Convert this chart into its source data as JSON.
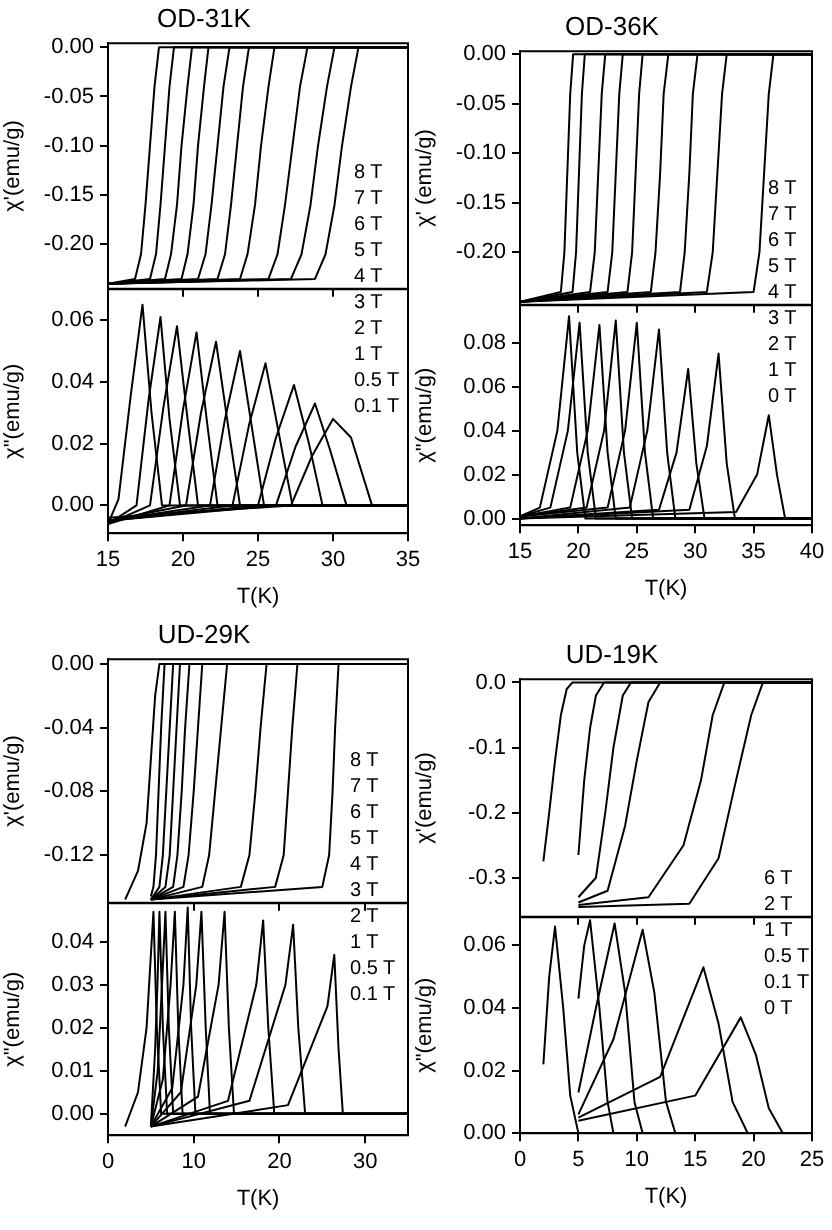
{
  "chart_data": [
    {
      "type": "line",
      "title": "OD-31K",
      "ylabel": "χ'(emu/g)",
      "xlim": [
        15,
        35
      ],
      "xticks": [
        15,
        20,
        25,
        30,
        35
      ],
      "ylim": [
        -0.245,
        0.004
      ],
      "yticks": [
        {
          "value": 0,
          "label": "0.00"
        },
        {
          "value": -0.05,
          "label": "-0.05"
        },
        {
          "value": -0.1,
          "label": "-0.10"
        },
        {
          "value": -0.15,
          "label": "-0.15"
        },
        {
          "value": -0.2,
          "label": "-0.20"
        }
      ],
      "tick_labels": "y",
      "marker": "none",
      "annotations": [
        "8 T",
        "7 T",
        "6 T",
        "5 T",
        "4 T",
        "3 T",
        "2 T",
        "1 T",
        "0.5 T",
        "0.1 T"
      ],
      "series": [
        {
          "color": "#000000",
          "x": [
            15,
            16.8,
            17.2,
            17.5,
            17.8,
            18.1,
            18.4,
            35
          ],
          "values": [
            -0.24,
            -0.235,
            -0.21,
            -0.16,
            -0.1,
            -0.04,
            0,
            0
          ]
        },
        {
          "color": "#000000",
          "x": [
            15,
            17.8,
            18.2,
            18.5,
            18.8,
            19.1,
            19.4,
            35
          ],
          "values": [
            -0.24,
            -0.235,
            -0.21,
            -0.16,
            -0.1,
            -0.04,
            0,
            0
          ]
        },
        {
          "color": "#000000",
          "x": [
            15,
            18.8,
            19.2,
            19.6,
            19.9,
            20.3,
            20.6,
            35
          ],
          "values": [
            -0.24,
            -0.235,
            -0.21,
            -0.16,
            -0.1,
            -0.04,
            0,
            0
          ]
        },
        {
          "color": "#000000",
          "x": [
            15,
            19.9,
            20.3,
            20.7,
            21.0,
            21.4,
            21.7,
            35
          ],
          "values": [
            -0.24,
            -0.235,
            -0.21,
            -0.16,
            -0.1,
            -0.04,
            0,
            0
          ]
        },
        {
          "color": "#000000",
          "x": [
            15,
            21.0,
            21.5,
            21.9,
            22.3,
            22.7,
            23.1,
            35
          ],
          "values": [
            -0.24,
            -0.235,
            -0.21,
            -0.16,
            -0.1,
            -0.04,
            0,
            0
          ]
        },
        {
          "color": "#000000",
          "x": [
            15,
            22.3,
            22.8,
            23.2,
            23.6,
            24.0,
            24.4,
            35
          ],
          "values": [
            -0.24,
            -0.235,
            -0.21,
            -0.16,
            -0.1,
            -0.04,
            0,
            0
          ]
        },
        {
          "color": "#000000",
          "x": [
            15,
            23.8,
            24.3,
            24.8,
            25.2,
            25.7,
            26.1,
            35
          ],
          "values": [
            -0.24,
            -0.235,
            -0.21,
            -0.16,
            -0.1,
            -0.04,
            0,
            0
          ]
        },
        {
          "color": "#000000",
          "x": [
            15,
            25.7,
            26.3,
            26.8,
            27.3,
            27.8,
            28.3,
            35
          ],
          "values": [
            -0.24,
            -0.235,
            -0.21,
            -0.16,
            -0.1,
            -0.04,
            0,
            0
          ]
        },
        {
          "color": "#000000",
          "x": [
            15,
            27.2,
            27.9,
            28.5,
            29.0,
            29.6,
            30.1,
            35
          ],
          "values": [
            -0.24,
            -0.235,
            -0.21,
            -0.16,
            -0.1,
            -0.04,
            0,
            0
          ]
        },
        {
          "color": "#000000",
          "x": [
            15,
            28.8,
            29.5,
            30.1,
            30.6,
            31.2,
            31.7,
            35
          ],
          "values": [
            -0.24,
            -0.235,
            -0.21,
            -0.16,
            -0.1,
            -0.04,
            0,
            0
          ]
        }
      ]
    },
    {
      "type": "line",
      "xlabel": "T(K)",
      "ylabel": "χ\"(emu/g)",
      "xlim": [
        15,
        35
      ],
      "xticks": [
        15,
        20,
        25,
        30,
        35
      ],
      "ylim": [
        -0.009,
        0.07
      ],
      "yticks": [
        {
          "value": 0,
          "label": "0.00"
        },
        {
          "value": 0.02,
          "label": "0.02"
        },
        {
          "value": 0.04,
          "label": "0.04"
        },
        {
          "value": 0.06,
          "label": "0.06"
        }
      ],
      "marker": "none",
      "series": [
        {
          "color": "#000000",
          "x": [
            15,
            15.7,
            16.5,
            17.3,
            17.9,
            18.6,
            35
          ],
          "values": [
            -0.006,
            0.002,
            0.035,
            0.065,
            0.03,
            0,
            0
          ]
        },
        {
          "color": "#000000",
          "x": [
            15,
            16.9,
            17.7,
            18.5,
            19.1,
            19.8,
            35
          ],
          "values": [
            -0.006,
            0,
            0.034,
            0.061,
            0.028,
            0,
            0
          ]
        },
        {
          "color": "#000000",
          "x": [
            15,
            17.8,
            18.7,
            19.6,
            20.3,
            21.0,
            35
          ],
          "values": [
            -0.006,
            0,
            0.032,
            0.058,
            0.028,
            0,
            0
          ]
        },
        {
          "color": "#000000",
          "x": [
            15,
            19.1,
            20.0,
            20.9,
            21.6,
            22.3,
            35
          ],
          "values": [
            -0.006,
            0,
            0.031,
            0.056,
            0.027,
            0,
            0
          ]
        },
        {
          "color": "#000000",
          "x": [
            15,
            20.2,
            21.2,
            22.2,
            23.0,
            23.8,
            35
          ],
          "values": [
            -0.005,
            0,
            0.03,
            0.053,
            0.026,
            0,
            0
          ]
        },
        {
          "color": "#000000",
          "x": [
            15,
            21.8,
            22.8,
            23.8,
            24.6,
            25.4,
            35
          ],
          "values": [
            -0.005,
            0,
            0.028,
            0.05,
            0.025,
            0,
            0
          ]
        },
        {
          "color": "#000000",
          "x": [
            15,
            23.3,
            24.4,
            25.5,
            26.4,
            27.3,
            35
          ],
          "values": [
            -0.005,
            0,
            0.026,
            0.046,
            0.023,
            0,
            0
          ]
        },
        {
          "color": "#000000",
          "x": [
            15,
            25.0,
            26.2,
            27.4,
            28.4,
            29.3,
            35
          ],
          "values": [
            -0.005,
            0,
            0.022,
            0.039,
            0.02,
            0,
            0
          ]
        },
        {
          "color": "#000000",
          "x": [
            15,
            26.2,
            27.5,
            28.8,
            29.8,
            30.9,
            35
          ],
          "values": [
            -0.005,
            0,
            0.019,
            0.033,
            0.018,
            0,
            0
          ]
        },
        {
          "color": "#000000",
          "x": [
            15,
            27.2,
            28.6,
            30.0,
            31.2,
            32.6,
            35
          ],
          "values": [
            -0.004,
            0,
            0.016,
            0.028,
            0.022,
            0,
            0
          ]
        }
      ]
    },
    {
      "type": "line",
      "title": "OD-36K",
      "ylabel": "χ' (emu/g)",
      "xlim": [
        15,
        40
      ],
      "xticks": [
        15,
        20,
        25,
        30,
        35,
        40
      ],
      "ylim": [
        -0.253,
        0.003
      ],
      "yticks": [
        {
          "value": 0,
          "label": "0.00"
        },
        {
          "value": -0.05,
          "label": "-0.05"
        },
        {
          "value": -0.1,
          "label": "-0.10"
        },
        {
          "value": -0.15,
          "label": "-0.15"
        },
        {
          "value": -0.2,
          "label": "-0.20"
        }
      ],
      "tick_labels": "y",
      "marker": "none",
      "annotations": [
        "8 T",
        "7 T",
        "6 T",
        "5 T",
        "4 T",
        "3 T",
        "2 T",
        "1 T",
        "0 T"
      ],
      "series": [
        {
          "color": "#000000",
          "x": [
            15,
            18.5,
            18.8,
            19.05,
            19.3,
            19.55,
            40
          ],
          "values": [
            -0.25,
            -0.24,
            -0.2,
            -0.12,
            -0.04,
            0,
            0
          ]
        },
        {
          "color": "#000000",
          "x": [
            15,
            19.5,
            19.8,
            20.05,
            20.3,
            20.55,
            40
          ],
          "values": [
            -0.25,
            -0.24,
            -0.2,
            -0.12,
            -0.04,
            0,
            0
          ]
        },
        {
          "color": "#000000",
          "x": [
            15,
            21.0,
            21.4,
            21.7,
            22.0,
            22.3,
            40
          ],
          "values": [
            -0.25,
            -0.24,
            -0.2,
            -0.12,
            -0.04,
            0,
            0
          ]
        },
        {
          "color": "#000000",
          "x": [
            15,
            22.5,
            22.9,
            23.2,
            23.5,
            23.8,
            40
          ],
          "values": [
            -0.25,
            -0.24,
            -0.2,
            -0.12,
            -0.04,
            0,
            0
          ]
        },
        {
          "color": "#000000",
          "x": [
            15,
            24.2,
            24.6,
            24.9,
            25.2,
            25.5,
            40
          ],
          "values": [
            -0.25,
            -0.24,
            -0.2,
            -0.12,
            -0.04,
            0,
            0
          ]
        },
        {
          "color": "#000000",
          "x": [
            15,
            26.2,
            26.6,
            27.0,
            27.3,
            27.7,
            40
          ],
          "values": [
            -0.25,
            -0.24,
            -0.2,
            -0.12,
            -0.04,
            0,
            0
          ]
        },
        {
          "color": "#000000",
          "x": [
            15,
            28.7,
            29.1,
            29.5,
            29.8,
            30.2,
            40
          ],
          "values": [
            -0.25,
            -0.24,
            -0.2,
            -0.12,
            -0.04,
            0,
            0
          ]
        },
        {
          "color": "#000000",
          "x": [
            15,
            31.0,
            31.5,
            31.9,
            32.3,
            32.7,
            40
          ],
          "values": [
            -0.25,
            -0.24,
            -0.2,
            -0.12,
            -0.04,
            0,
            0
          ]
        },
        {
          "color": "#000000",
          "x": [
            15,
            35.0,
            35.5,
            35.9,
            36.3,
            36.7,
            40
          ],
          "values": [
            -0.25,
            -0.24,
            -0.2,
            -0.12,
            -0.04,
            0,
            0
          ]
        }
      ]
    },
    {
      "type": "line",
      "xlabel": "T(K)",
      "ylabel": "χ\"(emu/g)",
      "xlim": [
        15,
        40
      ],
      "xticks": [
        15,
        20,
        25,
        30,
        35,
        40
      ],
      "ylim": [
        -0.003,
        0.097
      ],
      "yticks": [
        {
          "value": 0,
          "label": "0.00"
        },
        {
          "value": 0.02,
          "label": "0.02"
        },
        {
          "value": 0.04,
          "label": "0.04"
        },
        {
          "value": 0.06,
          "label": "0.06"
        },
        {
          "value": 0.08,
          "label": "0.08"
        }
      ],
      "marker": "none",
      "series": [
        {
          "color": "#000000",
          "x": [
            15,
            16.7,
            18.2,
            19.2,
            19.9,
            20.6,
            40
          ],
          "values": [
            0.001,
            0.005,
            0.04,
            0.092,
            0.03,
            0,
            0
          ]
        },
        {
          "color": "#000000",
          "x": [
            15,
            17.6,
            19.1,
            20.1,
            20.8,
            21.5,
            40
          ],
          "values": [
            0.001,
            0.005,
            0.04,
            0.089,
            0.03,
            0,
            0
          ]
        },
        {
          "color": "#000000",
          "x": [
            15,
            19.3,
            20.8,
            21.8,
            22.5,
            23.2,
            40
          ],
          "values": [
            0.001,
            0.005,
            0.04,
            0.088,
            0.03,
            0,
            0
          ]
        },
        {
          "color": "#000000",
          "x": [
            15,
            20.7,
            22.2,
            23.2,
            23.9,
            24.6,
            40
          ],
          "values": [
            0.001,
            0.005,
            0.04,
            0.09,
            0.03,
            0,
            0
          ]
        },
        {
          "color": "#000000",
          "x": [
            15,
            22.5,
            24.0,
            25.0,
            25.7,
            26.4,
            40
          ],
          "values": [
            0.001,
            0.005,
            0.04,
            0.089,
            0.03,
            0,
            0
          ]
        },
        {
          "color": "#000000",
          "x": [
            15,
            24.4,
            25.9,
            26.9,
            27.6,
            28.3,
            40
          ],
          "values": [
            0,
            0.005,
            0.04,
            0.086,
            0.03,
            0,
            0
          ]
        },
        {
          "color": "#000000",
          "x": [
            15,
            26.9,
            28.4,
            29.4,
            30.1,
            30.8,
            40
          ],
          "values": [
            0,
            0.004,
            0.03,
            0.068,
            0.025,
            0,
            0
          ]
        },
        {
          "color": "#000000",
          "x": [
            15,
            29.5,
            31.0,
            32.0,
            32.7,
            33.4,
            40
          ],
          "values": [
            0,
            0.004,
            0.033,
            0.075,
            0.025,
            0,
            0
          ]
        },
        {
          "color": "#000000",
          "x": [
            15,
            33.5,
            35.3,
            36.3,
            37.0,
            37.7,
            40
          ],
          "values": [
            0,
            0.003,
            0.02,
            0.047,
            0.02,
            0,
            0
          ]
        }
      ]
    },
    {
      "type": "line",
      "title": "UD-29K",
      "ylabel": "χ'(emu/g)",
      "xlim": [
        0,
        35
      ],
      "xticks": [
        0,
        10,
        20,
        30
      ],
      "ylim": [
        -0.15,
        0.003
      ],
      "yticks": [
        {
          "value": 0,
          "label": "0.00"
        },
        {
          "value": -0.04,
          "label": "-0.04"
        },
        {
          "value": -0.08,
          "label": "-0.08"
        },
        {
          "value": -0.12,
          "label": "-0.12"
        }
      ],
      "tick_labels": "y",
      "marker": "none",
      "annotations": [
        "8 T",
        "7 T",
        "6 T",
        "5 T",
        "4 T",
        "3 T",
        "2 T",
        "1 T",
        "0.5 T",
        "0.1 T"
      ],
      "series": [
        {
          "color": "#000000",
          "x": [
            2,
            3.5,
            4.5,
            5.0,
            5.5,
            6.0,
            35
          ],
          "values": [
            -0.148,
            -0.13,
            -0.1,
            -0.06,
            -0.02,
            0,
            0
          ]
        },
        {
          "color": "#000000",
          "x": [
            5,
            5.3,
            5.6,
            5.9,
            6.2,
            6.6,
            35
          ],
          "values": [
            -0.146,
            -0.14,
            -0.12,
            -0.08,
            -0.04,
            0,
            0
          ]
        },
        {
          "color": "#000000",
          "x": [
            5,
            6.0,
            6.4,
            6.8,
            7.2,
            7.6,
            35
          ],
          "values": [
            -0.148,
            -0.14,
            -0.12,
            -0.08,
            -0.04,
            0,
            0
          ]
        },
        {
          "color": "#000000",
          "x": [
            5,
            6.7,
            7.2,
            7.6,
            8.0,
            8.4,
            35
          ],
          "values": [
            -0.148,
            -0.14,
            -0.12,
            -0.08,
            -0.04,
            0,
            0
          ]
        },
        {
          "color": "#000000",
          "x": [
            5,
            7.6,
            8.1,
            8.6,
            9.0,
            9.5,
            35
          ],
          "values": [
            -0.148,
            -0.14,
            -0.12,
            -0.08,
            -0.04,
            0,
            0
          ]
        },
        {
          "color": "#000000",
          "x": [
            5,
            8.8,
            9.4,
            10.0,
            10.5,
            11.0,
            35
          ],
          "values": [
            -0.148,
            -0.14,
            -0.12,
            -0.08,
            -0.04,
            0,
            0
          ]
        },
        {
          "color": "#000000",
          "x": [
            5,
            11.0,
            11.8,
            12.5,
            13.2,
            13.9,
            35
          ],
          "values": [
            -0.148,
            -0.14,
            -0.12,
            -0.08,
            -0.04,
            0,
            0
          ]
        },
        {
          "color": "#000000",
          "x": [
            5,
            15.5,
            16.5,
            17.2,
            17.8,
            18.5,
            35
          ],
          "values": [
            -0.148,
            -0.14,
            -0.12,
            -0.08,
            -0.04,
            0,
            0
          ]
        },
        {
          "color": "#000000",
          "x": [
            5,
            19.5,
            20.5,
            21.0,
            21.5,
            22.1,
            35
          ],
          "values": [
            -0.148,
            -0.14,
            -0.12,
            -0.08,
            -0.04,
            0,
            0
          ]
        },
        {
          "color": "#000000",
          "x": [
            5,
            25.0,
            25.8,
            26.2,
            26.5,
            26.9,
            35
          ],
          "values": [
            -0.148,
            -0.14,
            -0.12,
            -0.08,
            -0.04,
            0,
            0
          ]
        }
      ]
    },
    {
      "type": "line",
      "xlabel": "T(K)",
      "ylabel": "χ\"(emu/g)",
      "xlim": [
        0,
        35
      ],
      "xticks": [
        0,
        10,
        20,
        30
      ],
      "ylim": [
        -0.005,
        0.049
      ],
      "yticks": [
        {
          "value": 0,
          "label": "0.00"
        },
        {
          "value": 0.01,
          "label": "0.01"
        },
        {
          "value": 0.02,
          "label": "0.02"
        },
        {
          "value": 0.03,
          "label": "0.03"
        },
        {
          "value": 0.04,
          "label": "0.04"
        }
      ],
      "marker": "none",
      "series": [
        {
          "color": "#000000",
          "x": [
            2,
            3.5,
            4.5,
            5.3,
            5.7,
            6.2,
            35
          ],
          "values": [
            -0.003,
            0.005,
            0.02,
            0.047,
            0.02,
            0,
            0
          ]
        },
        {
          "color": "#000000",
          "x": [
            5,
            5.5,
            5.8,
            6.0,
            6.4,
            6.9,
            35
          ],
          "values": [
            -0.003,
            0.015,
            0.032,
            0.047,
            0.02,
            0,
            0
          ]
        },
        {
          "color": "#000000",
          "x": [
            5,
            5.8,
            6.3,
            6.7,
            7.1,
            7.6,
            35
          ],
          "values": [
            -0.003,
            0.01,
            0.03,
            0.047,
            0.02,
            0,
            0
          ]
        },
        {
          "color": "#000000",
          "x": [
            5,
            6.4,
            7.3,
            7.8,
            8.2,
            8.7,
            35
          ],
          "values": [
            -0.003,
            0.008,
            0.03,
            0.047,
            0.02,
            0,
            0
          ]
        },
        {
          "color": "#000000",
          "x": [
            5,
            7.5,
            8.8,
            9.3,
            9.7,
            10.2,
            35
          ],
          "values": [
            -0.003,
            0.006,
            0.03,
            0.048,
            0.02,
            0,
            0
          ]
        },
        {
          "color": "#000000",
          "x": [
            5,
            8.5,
            10.3,
            10.9,
            11.4,
            11.9,
            35
          ],
          "values": [
            -0.003,
            0.005,
            0.03,
            0.047,
            0.02,
            0,
            0
          ]
        },
        {
          "color": "#000000",
          "x": [
            5,
            10.5,
            12.9,
            13.6,
            14.1,
            14.7,
            35
          ],
          "values": [
            -0.003,
            0.004,
            0.03,
            0.047,
            0.02,
            0,
            0
          ]
        },
        {
          "color": "#000000",
          "x": [
            5,
            14.0,
            17.3,
            18.1,
            18.7,
            19.4,
            35
          ],
          "values": [
            -0.003,
            0.003,
            0.03,
            0.045,
            0.02,
            0,
            0
          ]
        },
        {
          "color": "#000000",
          "x": [
            5,
            16.5,
            20.7,
            21.6,
            22.2,
            23.0,
            35
          ],
          "values": [
            -0.003,
            0.003,
            0.03,
            0.044,
            0.02,
            0,
            0
          ]
        },
        {
          "color": "#000000",
          "x": [
            5,
            21.0,
            25.6,
            26.4,
            26.9,
            27.4,
            35
          ],
          "values": [
            -0.003,
            0.002,
            0.025,
            0.037,
            0.015,
            0,
            0
          ]
        }
      ]
    },
    {
      "type": "line",
      "title": "UD-19K",
      "ylabel": "χ'(emu/g)",
      "xlim": [
        0,
        25
      ],
      "xticks": [
        0,
        5,
        10,
        15,
        20,
        25
      ],
      "ylim": [
        -0.36,
        0.005
      ],
      "yticks": [
        {
          "value": 0,
          "label": "0.0"
        },
        {
          "value": -0.1,
          "label": "-0.1"
        },
        {
          "value": -0.2,
          "label": "-0.2"
        },
        {
          "value": -0.3,
          "label": "-0.3"
        }
      ],
      "tick_labels": "y",
      "marker": "none",
      "annotations": [
        "6 T",
        "2 T",
        "1 T",
        "0.5 T",
        "0.1 T",
        "0 T"
      ],
      "series": [
        {
          "color": "#000000",
          "x": [
            2,
            2.5,
            3,
            3.5,
            4,
            4.5,
            25
          ],
          "values": [
            -0.275,
            -0.2,
            -0.12,
            -0.05,
            -0.01,
            0,
            0
          ]
        },
        {
          "color": "#000000",
          "x": [
            5,
            5.5,
            6,
            6.5,
            7.2,
            25
          ],
          "values": [
            -0.265,
            -0.15,
            -0.07,
            -0.02,
            0,
            0
          ]
        },
        {
          "color": "#000000",
          "x": [
            5,
            6.5,
            7.3,
            8,
            8.8,
            9.5,
            25
          ],
          "values": [
            -0.33,
            -0.3,
            -0.2,
            -0.1,
            -0.02,
            0,
            0
          ]
        },
        {
          "color": "#000000",
          "x": [
            5,
            7.5,
            9,
            10,
            11,
            12,
            25
          ],
          "values": [
            -0.338,
            -0.32,
            -0.22,
            -0.12,
            -0.03,
            0,
            0
          ]
        },
        {
          "color": "#000000",
          "x": [
            5,
            11,
            14,
            15.5,
            16.5,
            17.5,
            25
          ],
          "values": [
            -0.342,
            -0.33,
            -0.25,
            -0.15,
            -0.05,
            0,
            0
          ]
        },
        {
          "color": "#000000",
          "x": [
            5,
            14.5,
            17,
            18.5,
            19.8,
            20.8,
            25
          ],
          "values": [
            -0.345,
            -0.34,
            -0.27,
            -0.15,
            -0.05,
            0,
            0
          ]
        }
      ]
    },
    {
      "type": "line",
      "xlabel": "T(K)",
      "ylabel": "χ\"(emu/g)",
      "xlim": [
        0,
        25
      ],
      "xticks": [
        0,
        5,
        10,
        15,
        20,
        25
      ],
      "ylim": [
        0,
        0.069
      ],
      "yticks": [
        {
          "value": 0,
          "label": "0.00"
        },
        {
          "value": 0.02,
          "label": "0.02"
        },
        {
          "value": 0.04,
          "label": "0.04"
        },
        {
          "value": 0.06,
          "label": "0.06"
        }
      ],
      "marker": "none",
      "series": [
        {
          "color": "#000000",
          "x": [
            2,
            2.5,
            3.0,
            3.7,
            4.3,
            5,
            25
          ],
          "values": [
            0.022,
            0.05,
            0.066,
            0.04,
            0.012,
            0,
            0
          ]
        },
        {
          "color": "#000000",
          "x": [
            5,
            5.5,
            6.0,
            6.8,
            7.5,
            8,
            25
          ],
          "values": [
            0.043,
            0.06,
            0.068,
            0.04,
            0.01,
            0,
            0
          ]
        },
        {
          "color": "#000000",
          "x": [
            5,
            6.5,
            8.1,
            9,
            9.8,
            10.5,
            25
          ],
          "values": [
            0.013,
            0.04,
            0.067,
            0.045,
            0.01,
            0,
            0
          ]
        },
        {
          "color": "#000000",
          "x": [
            5,
            8,
            10.5,
            11.5,
            12.5,
            13.3,
            25
          ],
          "values": [
            0.006,
            0.03,
            0.065,
            0.045,
            0.01,
            0,
            0
          ]
        },
        {
          "color": "#000000",
          "x": [
            5,
            12,
            15.7,
            17,
            18.2,
            19.5,
            25
          ],
          "values": [
            0.005,
            0.018,
            0.053,
            0.035,
            0.01,
            0,
            0
          ]
        },
        {
          "color": "#000000",
          "x": [
            5,
            15,
            18.9,
            20.2,
            21.3,
            22.5,
            25
          ],
          "values": [
            0.004,
            0.012,
            0.037,
            0.025,
            0.008,
            0,
            0
          ]
        }
      ]
    }
  ]
}
